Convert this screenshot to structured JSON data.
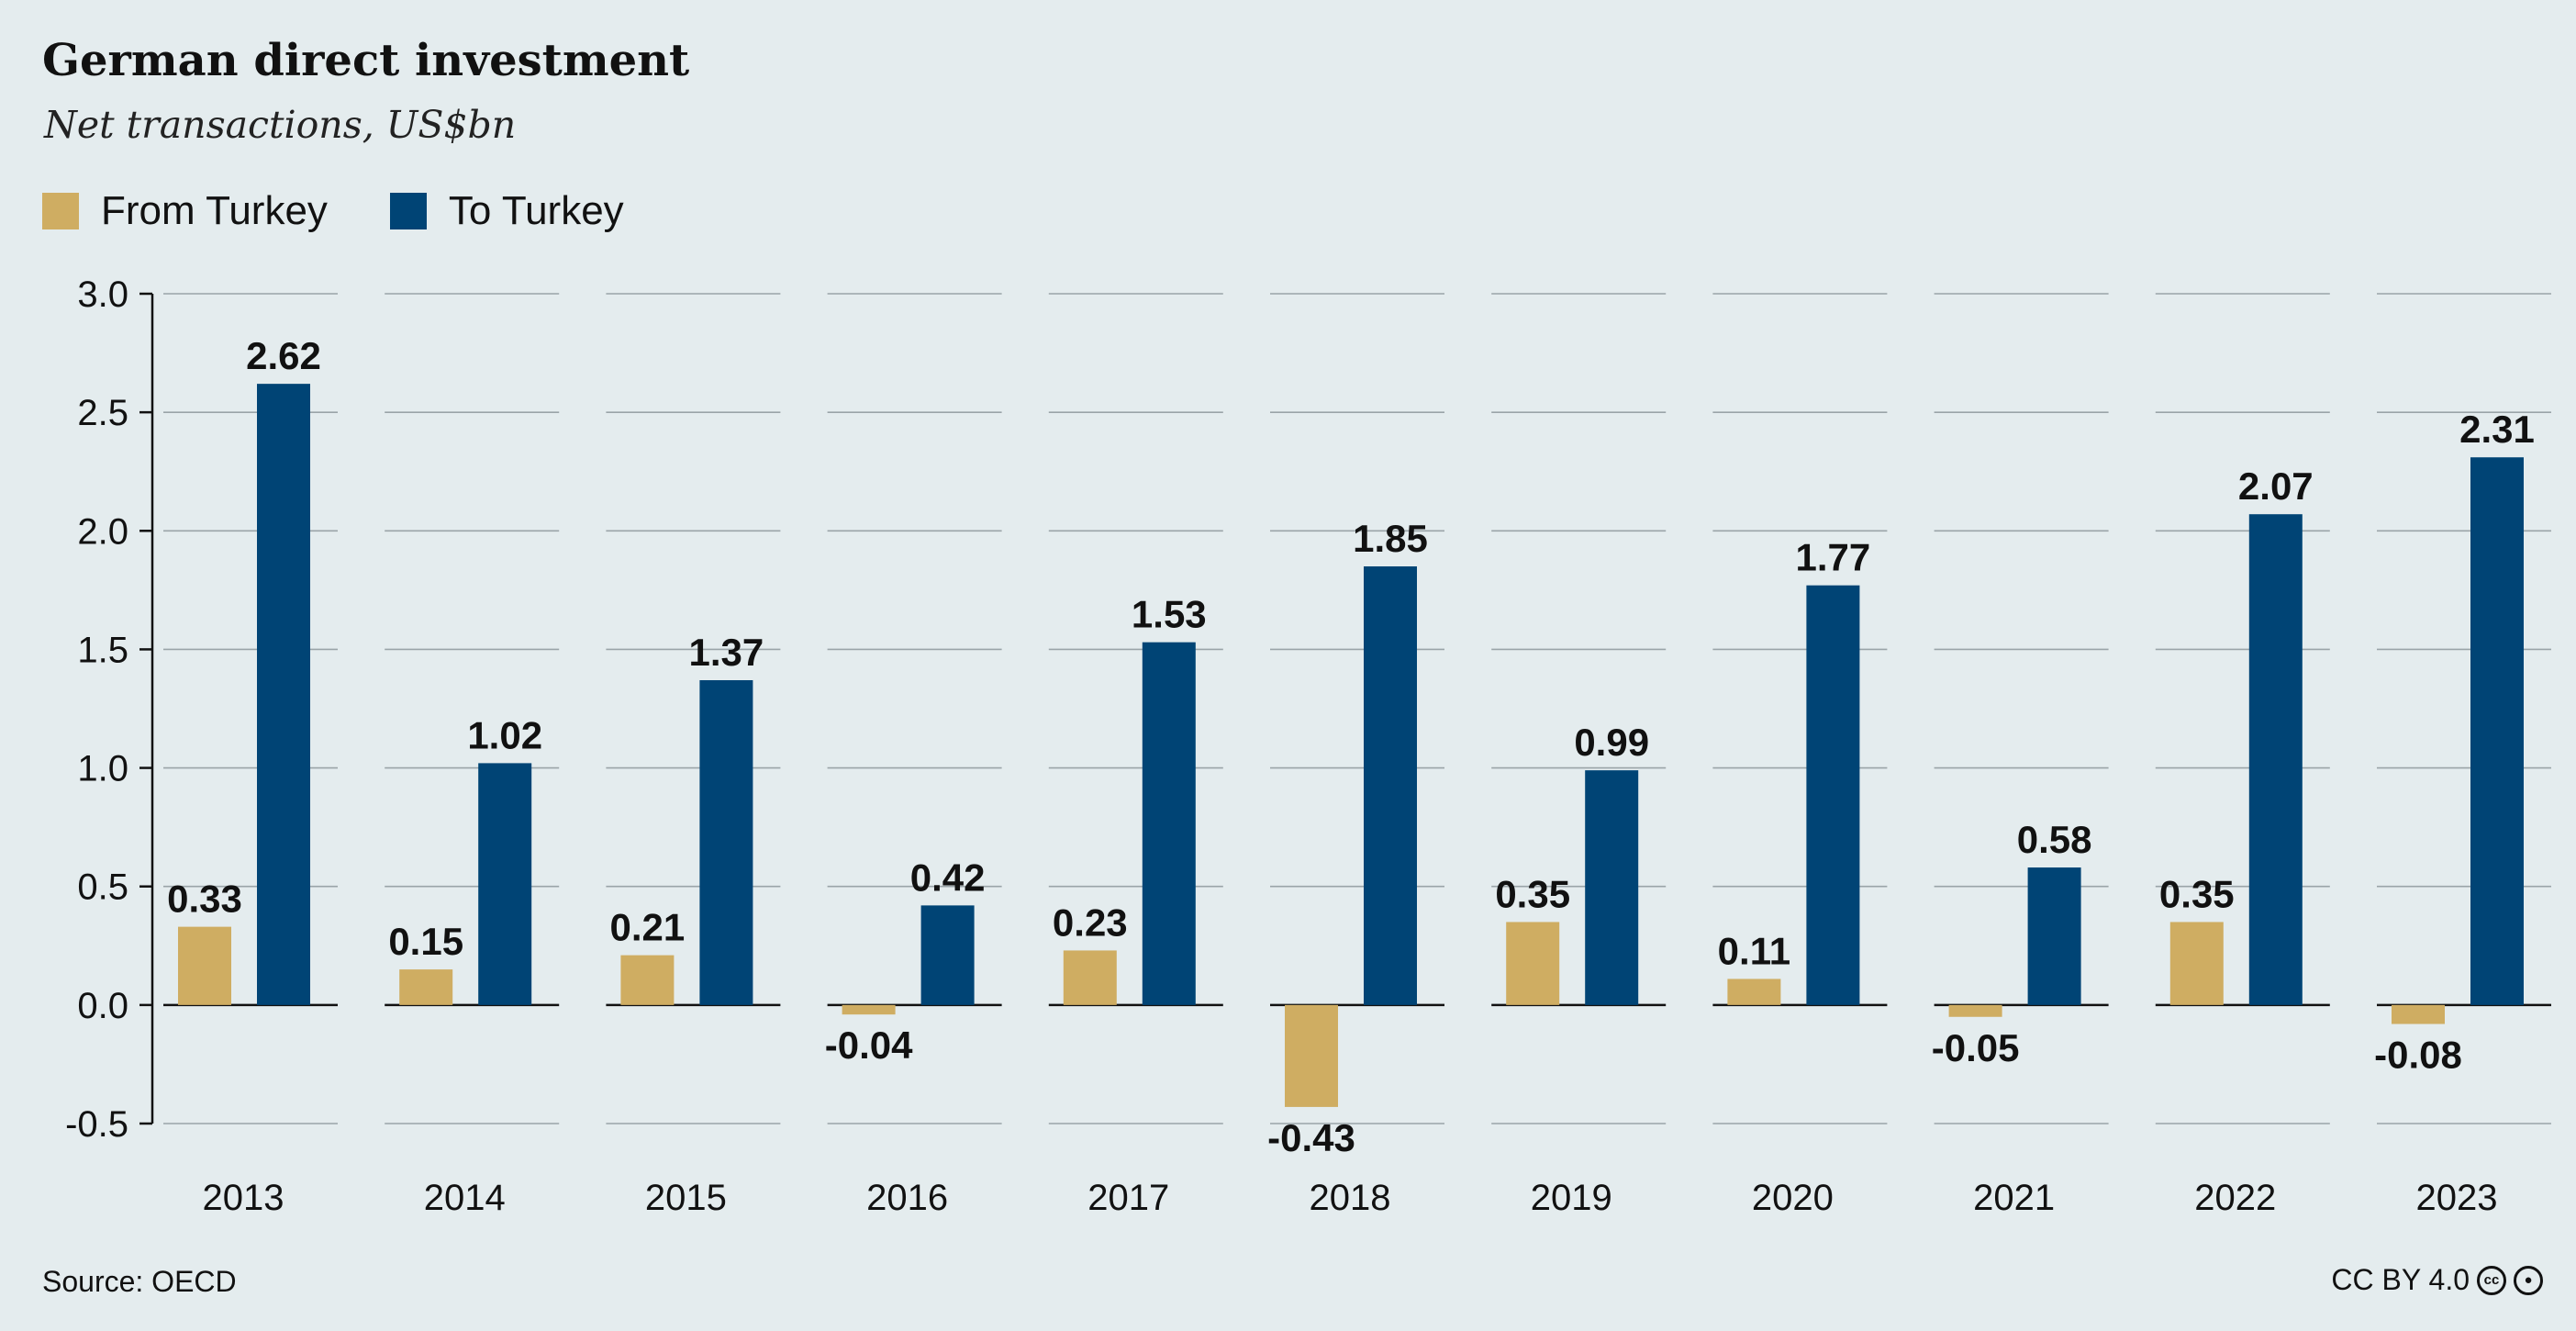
{
  "title": "German direct investment",
  "subtitle": "Net transactions, US$bn",
  "legend": [
    {
      "label": "From Turkey",
      "color": "#cfad62"
    },
    {
      "label": "To Turkey",
      "color": "#004475"
    }
  ],
  "source": "Source: OECD",
  "license": "CC BY 4.0",
  "license_icons": [
    "cc-icon",
    "by-icon"
  ],
  "chart_data": {
    "type": "bar",
    "title": "German direct investment",
    "subtitle": "Net transactions, US$bn",
    "xlabel": "",
    "ylabel": "",
    "ylim": [
      -0.5,
      3.0
    ],
    "yticks": [
      "3.0",
      "2.5",
      "2.0",
      "1.5",
      "1.0",
      "0.5",
      "0.0",
      "-0.5"
    ],
    "ytick_values": [
      3.0,
      2.5,
      2.0,
      1.5,
      1.0,
      0.5,
      0.0,
      -0.5
    ],
    "grid": true,
    "legend_position": "top-left",
    "categories": [
      "2013",
      "2014",
      "2015",
      "2016",
      "2017",
      "2018",
      "2019",
      "2020",
      "2021",
      "2022",
      "2023"
    ],
    "series": [
      {
        "name": "From Turkey",
        "color": "#cfad62",
        "values": [
          0.33,
          0.15,
          0.21,
          -0.04,
          0.23,
          -0.43,
          0.35,
          0.11,
          -0.05,
          0.35,
          -0.08
        ],
        "labels": [
          "0.33",
          "0.15",
          "0.21",
          "-0.04",
          "0.23",
          "-0.43",
          "0.35",
          "0.11",
          "-0.05",
          "0.35",
          "-0.08"
        ]
      },
      {
        "name": "To Turkey",
        "color": "#004475",
        "values": [
          2.62,
          1.02,
          1.37,
          0.42,
          1.53,
          1.85,
          0.99,
          1.77,
          0.58,
          2.07,
          2.31
        ],
        "labels": [
          "2.62",
          "1.02",
          "1.37",
          "0.42",
          "1.53",
          "1.85",
          "0.99",
          "1.77",
          "0.58",
          "2.07",
          "2.31"
        ]
      }
    ]
  }
}
